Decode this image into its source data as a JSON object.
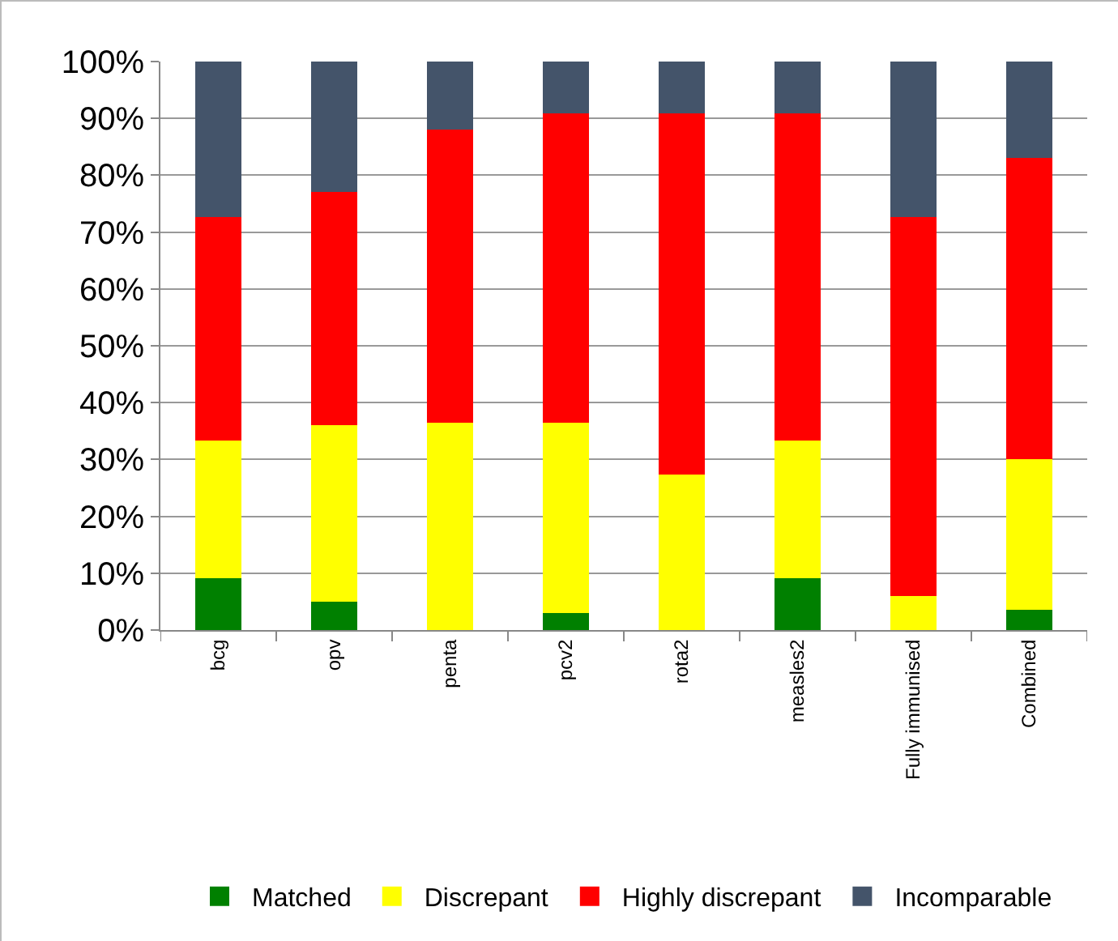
{
  "chart_data": {
    "type": "bar",
    "stacked": true,
    "categories": [
      "bcg",
      "opv",
      "penta",
      "pcv2",
      "rota2",
      "measles2",
      "Fully immunised",
      "Combined"
    ],
    "series": [
      {
        "name": "Matched",
        "color": "#008000",
        "values": [
          9.1,
          5,
          0,
          3,
          0,
          9.1,
          0,
          3.5
        ]
      },
      {
        "name": "Discrepant",
        "color": "#ffff00",
        "values": [
          24.2,
          31,
          36.4,
          33.4,
          27.3,
          24.2,
          6,
          26.5
        ]
      },
      {
        "name": "Highly discrepant",
        "color": "#ff0000",
        "values": [
          39.4,
          41,
          51.6,
          54.5,
          63.6,
          57.6,
          66.7,
          53
        ]
      },
      {
        "name": "Incomparable",
        "color": "#44546a",
        "values": [
          27.3,
          23,
          12,
          9.1,
          9.1,
          9.1,
          27.3,
          17
        ]
      }
    ],
    "ylim": [
      0,
      100
    ],
    "yticks": [
      {
        "value": 0,
        "label": "0%"
      },
      {
        "value": 10,
        "label": "10%"
      },
      {
        "value": 20,
        "label": "20%"
      },
      {
        "value": 30,
        "label": "30%"
      },
      {
        "value": 40,
        "label": "40%"
      },
      {
        "value": 50,
        "label": "50%"
      },
      {
        "value": 60,
        "label": "60%"
      },
      {
        "value": 70,
        "label": "70%"
      },
      {
        "value": 80,
        "label": "80%"
      },
      {
        "value": 90,
        "label": "90%"
      },
      {
        "value": 100,
        "label": "100%"
      }
    ],
    "grid": "y",
    "legend": "bottom"
  }
}
